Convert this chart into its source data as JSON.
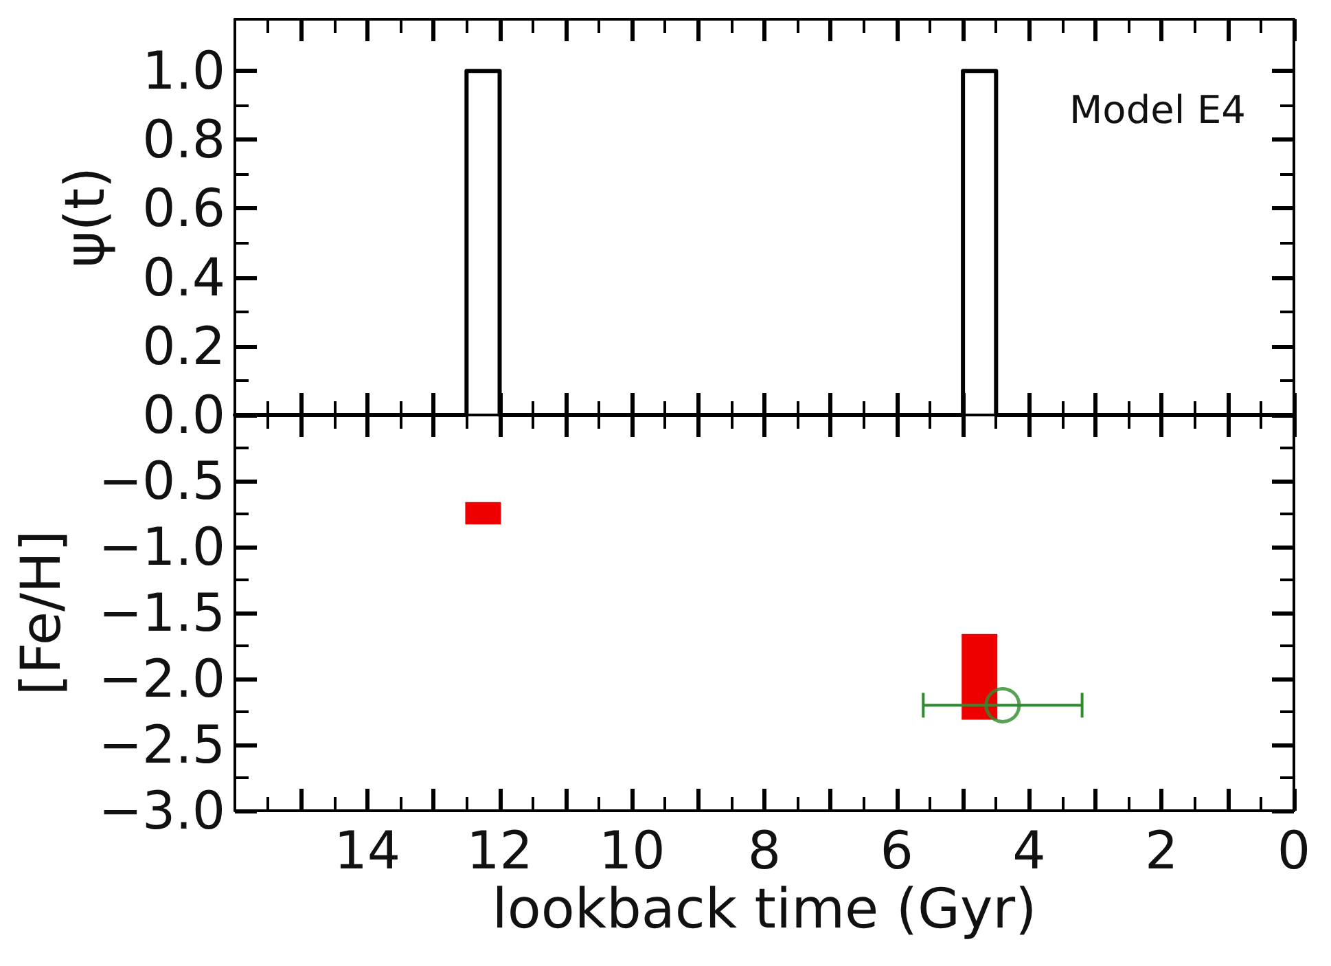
{
  "chart_data": [
    {
      "type": "step",
      "ylabel": "ψ(t)",
      "annotations": [
        "Model E4"
      ],
      "x": [
        16,
        12.5,
        12,
        5,
        4.5,
        0
      ],
      "values": [
        0,
        1,
        0,
        1,
        0,
        0
      ],
      "color": "#000000",
      "marker": "none",
      "xlim": [
        16,
        0
      ],
      "xticks": [
        {
          "value": 15.5,
          "label": null
        },
        {
          "value": 15,
          "label": null
        },
        {
          "value": 14.5,
          "label": null
        },
        14,
        {
          "value": 13.5,
          "label": null
        },
        {
          "value": 13,
          "label": null
        },
        {
          "value": 12.5,
          "label": null
        },
        12,
        {
          "value": 11.5,
          "label": null
        },
        {
          "value": 11,
          "label": null
        },
        {
          "value": 10.5,
          "label": null
        },
        10,
        {
          "value": 9.5,
          "label": null
        },
        {
          "value": 9,
          "label": null
        },
        {
          "value": 8.5,
          "label": null
        },
        8,
        {
          "value": 7.5,
          "label": null
        },
        {
          "value": 7,
          "label": null
        },
        {
          "value": 6.5,
          "label": null
        },
        6,
        {
          "value": 5.5,
          "label": null
        },
        {
          "value": 5,
          "label": null
        },
        {
          "value": 4.5,
          "label": null
        },
        4,
        {
          "value": 3.5,
          "label": null
        },
        {
          "value": 3,
          "label": null
        },
        {
          "value": 2.5,
          "label": null
        },
        2,
        {
          "value": 1.5,
          "label": null
        },
        {
          "value": 1,
          "label": null
        },
        {
          "value": 0.5,
          "label": null
        },
        0
      ],
      "ylim": [
        0,
        1.15
      ],
      "yticks": [
        {
          "value": 0,
          "label": "0.0"
        },
        {
          "value": 0.1,
          "label": null
        },
        0.2,
        {
          "value": 0.3,
          "label": null
        },
        0.4,
        {
          "value": 0.5,
          "label": null
        },
        0.6,
        {
          "value": 0.7,
          "label": null
        },
        0.8,
        {
          "value": 0.9,
          "label": null
        },
        {
          "value": 1,
          "label": "1.0"
        }
      ],
      "tick_labels": "y"
    },
    {
      "type": "bar",
      "xlabel": "lookback time (Gyr)",
      "ylabel": "[Fe/H]",
      "series": [
        {
          "color": "#ee0000",
          "x": [
            12.25,
            4.75
          ],
          "base": [
            -0.83,
            -2.31
          ],
          "values": [
            0.17,
            0.65
          ]
        },
        {
          "type": "scatter",
          "color": "#2e8b2e",
          "x": [
            4.4
          ],
          "values": [
            -2.2
          ],
          "xerrors": [
            1.2
          ],
          "marker": "circle"
        }
      ],
      "xlim": [
        16,
        0
      ],
      "xticks": [
        {
          "value": 15.5,
          "label": null
        },
        {
          "value": 15,
          "label": null
        },
        {
          "value": 14.5,
          "label": null
        },
        14,
        {
          "value": 13.5,
          "label": null
        },
        {
          "value": 13,
          "label": null
        },
        {
          "value": 12.5,
          "label": null
        },
        12,
        {
          "value": 11.5,
          "label": null
        },
        {
          "value": 11,
          "label": null
        },
        {
          "value": 10.5,
          "label": null
        },
        10,
        {
          "value": 9.5,
          "label": null
        },
        {
          "value": 9,
          "label": null
        },
        {
          "value": 8.5,
          "label": null
        },
        8,
        {
          "value": 7.5,
          "label": null
        },
        {
          "value": 7,
          "label": null
        },
        {
          "value": 6.5,
          "label": null
        },
        6,
        {
          "value": 5.5,
          "label": null
        },
        {
          "value": 5,
          "label": null
        },
        {
          "value": 4.5,
          "label": null
        },
        4,
        {
          "value": 3.5,
          "label": null
        },
        {
          "value": 3,
          "label": null
        },
        {
          "value": 2.5,
          "label": null
        },
        2,
        {
          "value": 1.5,
          "label": null
        },
        {
          "value": 1,
          "label": null
        },
        {
          "value": 0.5,
          "label": null
        },
        0
      ],
      "ylim": [
        -3,
        0
      ],
      "yticks": [
        {
          "value": -3,
          "label": "−3.0"
        },
        {
          "value": -2.75,
          "label": null
        },
        {
          "value": -2.5,
          "label": "−2.5"
        },
        {
          "value": -2.25,
          "label": null
        },
        {
          "value": -2,
          "label": "−2.0"
        },
        {
          "value": -1.75,
          "label": null
        },
        {
          "value": -1.5,
          "label": "−1.5"
        },
        {
          "value": -1.25,
          "label": null
        },
        {
          "value": -1,
          "label": "−1.0"
        },
        {
          "value": -0.75,
          "label": null
        },
        {
          "value": -0.5,
          "label": "−0.5"
        },
        {
          "value": -0.25,
          "label": null
        },
        {
          "value": 0,
          "label": null
        }
      ]
    }
  ]
}
